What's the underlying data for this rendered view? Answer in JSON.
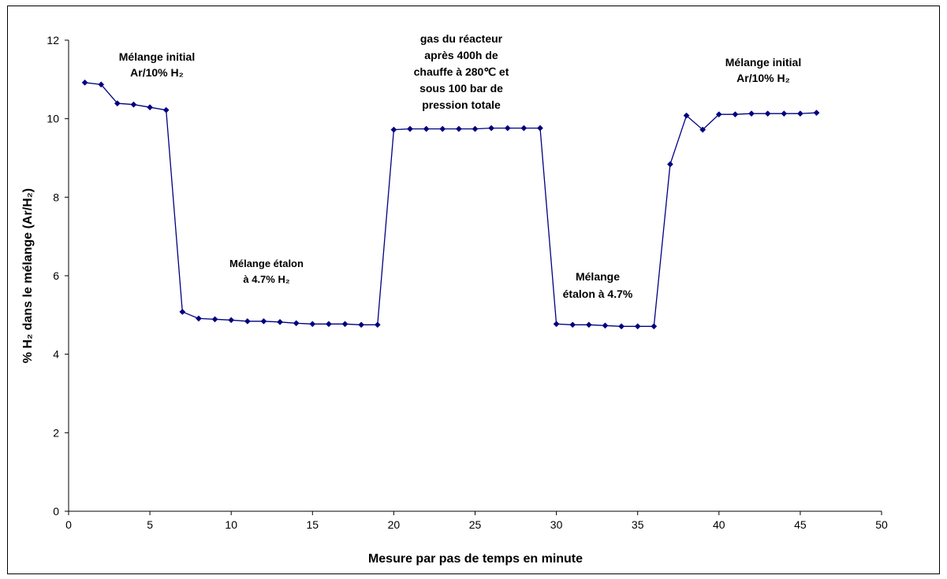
{
  "chart_data": {
    "type": "line",
    "xlabel": "Mesure par pas de temps en minute",
    "ylabel": "% H₂ dans le mélange (Ar/H₂)",
    "xlim": [
      0,
      50
    ],
    "ylim": [
      0,
      12
    ],
    "x_ticks": [
      "0",
      "5",
      "10",
      "15",
      "20",
      "25",
      "30",
      "35",
      "40",
      "45",
      "50"
    ],
    "y_ticks": [
      "0",
      "2",
      "4",
      "6",
      "8",
      "10",
      "12"
    ],
    "grid": false,
    "legend": "none",
    "series": [
      {
        "color": "#000080",
        "marker": "diamond",
        "x": [
          1,
          2,
          3,
          4,
          5,
          6,
          7,
          8,
          9,
          10,
          11,
          12,
          13,
          14,
          15,
          16,
          17,
          18,
          19,
          20,
          21,
          22,
          23,
          24,
          25,
          26,
          27,
          28,
          29,
          30,
          31,
          32,
          33,
          34,
          35,
          36,
          37,
          38,
          39,
          40,
          41,
          42,
          43,
          44,
          45,
          46
        ],
        "y": [
          10.92,
          10.87,
          10.39,
          10.36,
          10.29,
          10.22,
          5.08,
          4.91,
          4.89,
          4.87,
          4.84,
          4.84,
          4.82,
          4.79,
          4.77,
          4.77,
          4.77,
          4.75,
          4.75,
          9.72,
          9.74,
          9.74,
          9.74,
          9.74,
          9.74,
          9.76,
          9.76,
          9.76,
          9.76,
          4.77,
          4.75,
          4.75,
          4.73,
          4.71,
          4.71,
          4.71,
          8.84,
          10.08,
          9.72,
          10.11,
          10.11,
          10.13,
          10.13,
          10.13,
          10.13,
          10.15
        ]
      }
    ],
    "annotations": [
      {
        "lines": [
          "Mélange initial",
          "Ar/10% H₂"
        ]
      },
      {
        "lines": [
          "Mélange étalon",
          "à 4.7% H₂"
        ]
      },
      {
        "lines": [
          "gas du réacteur",
          "après 400h de",
          "chauffe à  280℃ et",
          "sous 100 bar de",
          "pression totale"
        ]
      },
      {
        "lines": [
          "Mélange",
          "étalon à 4.7%"
        ]
      },
      {
        "lines": [
          "Mélange initial",
          "Ar/10% H₂"
        ]
      }
    ]
  }
}
